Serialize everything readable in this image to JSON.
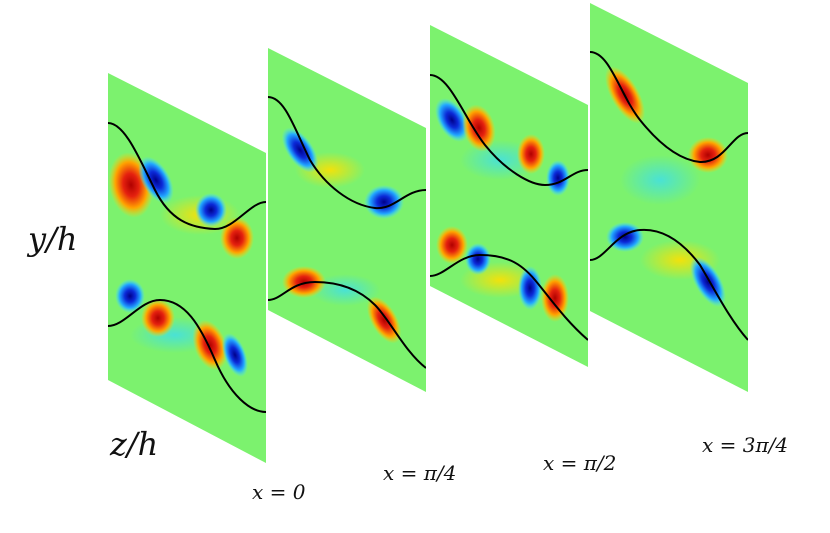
{
  "figure": {
    "axis_labels": {
      "vertical": "y/h",
      "horizontal": "z/h"
    },
    "colors": {
      "background_field": "#7cf26e",
      "positive": "#d7190f",
      "positive_light": "#ffb000",
      "negative": "#0a1fd6",
      "negative_light": "#29b6ff",
      "interface_line": "#000000"
    },
    "slices": [
      {
        "label": "x = 0"
      },
      {
        "label": "x = π/4"
      },
      {
        "label": "x = π/2"
      },
      {
        "label": "x = 3π/4"
      }
    ]
  }
}
